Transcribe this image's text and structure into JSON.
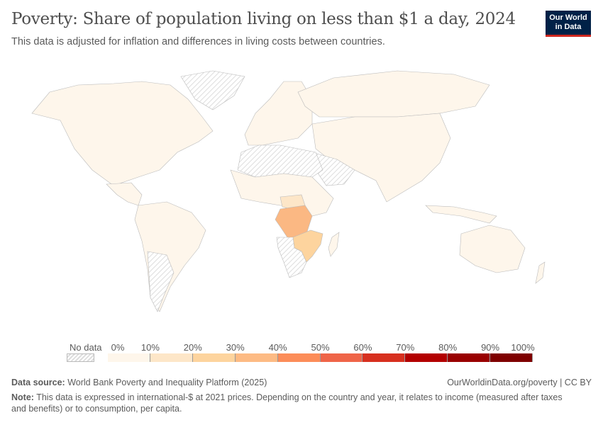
{
  "header": {
    "title": "Poverty: Share of population living on less than $1 a day, 2024",
    "subtitle": "This data is adjusted for inflation and differences in living costs between countries.",
    "logo": "Our World in Data"
  },
  "legend": {
    "no_data_label": "No data",
    "ticks": [
      "0%",
      "10%",
      "20%",
      "30%",
      "40%",
      "50%",
      "60%",
      "70%",
      "80%",
      "90%",
      "100%"
    ],
    "colors": [
      "#fef6eb",
      "#fde6c8",
      "#fdd49e",
      "#fdbb84",
      "#fc8d59",
      "#ef6548",
      "#d7301f",
      "#b30000",
      "#990000",
      "#7f0000"
    ]
  },
  "map": {
    "highlighted": [
      {
        "region": "DR Congo",
        "bin": "30-40%",
        "color": "#fbb883"
      },
      {
        "region": "Zambia / Malawi / Mozambique",
        "bin": "20-30%",
        "color": "#fdd49e"
      },
      {
        "region": "Central African Republic",
        "bin": "10-20%",
        "color": "#fde6c8"
      }
    ]
  },
  "footer": {
    "source_label": "Data source:",
    "source": "World Bank Poverty and Inequality Platform (2025)",
    "url": "OurWorldinData.org/poverty | CC BY",
    "note_label": "Note:",
    "note": "This data is expressed in international-$ at 2021 prices. Depending on the country and year, it relates to income (measured after taxes and benefits) or to consumption, per capita."
  }
}
